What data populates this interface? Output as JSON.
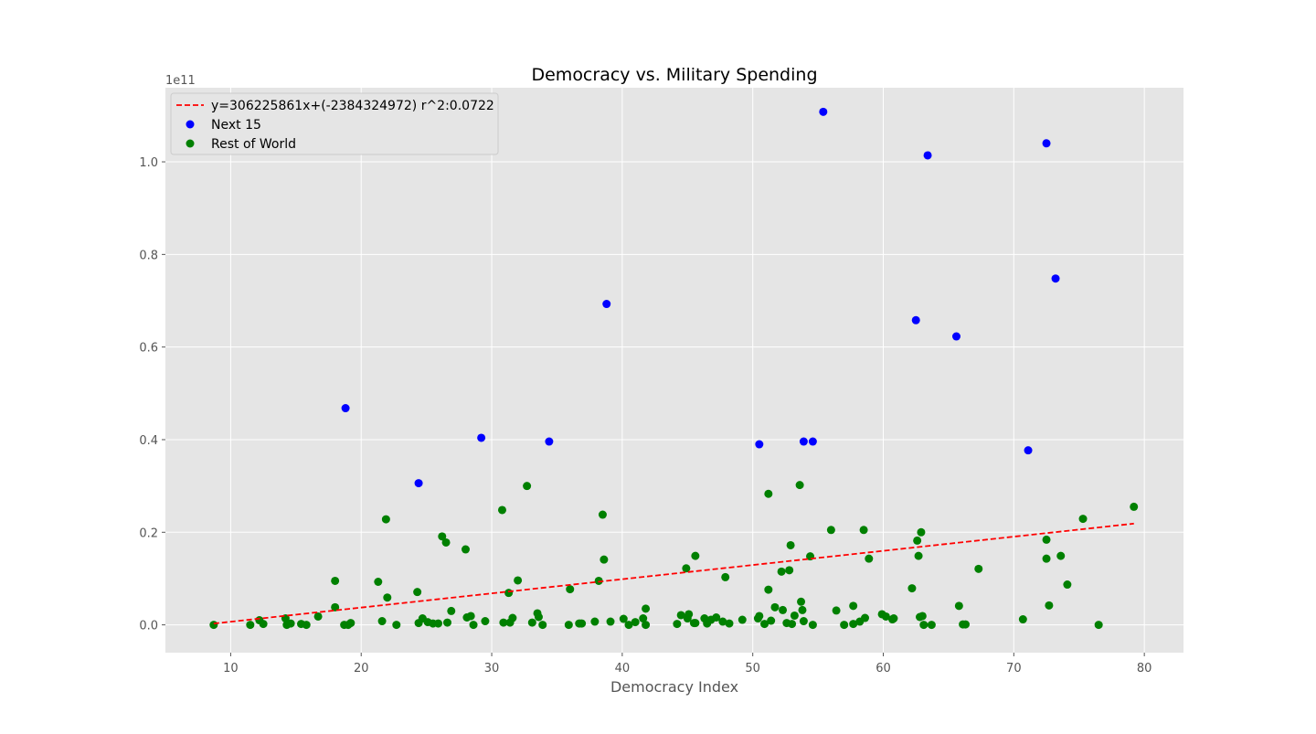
{
  "chart_data": {
    "type": "scatter",
    "title": "Democracy vs. Military Spending",
    "xlabel": "Democracy Index",
    "ylabel": "",
    "y_offset_label": "1e11",
    "xlim": [
      5,
      83
    ],
    "ylim": [
      -0.06,
      1.16
    ],
    "x_ticks": [
      10,
      20,
      30,
      40,
      50,
      60,
      70,
      80
    ],
    "y_ticks": [
      0.0,
      0.2,
      0.4,
      0.6,
      0.8,
      1.0
    ],
    "grid": true,
    "legend_position": "top-left",
    "trendline": {
      "name": "y=306225861x+(-2384324972) r^2:0.0722",
      "slope": 0.00306225861,
      "intercept": -0.02384324972,
      "x_range": [
        8.7,
        79.2
      ],
      "color": "#ff0000",
      "style": "dashed"
    },
    "series": [
      {
        "name": "Next 15",
        "color": "#0000ff",
        "points": [
          [
            55.4,
            1.108
          ],
          [
            72.5,
            1.04
          ],
          [
            63.4,
            1.014
          ],
          [
            38.8,
            0.693
          ],
          [
            73.2,
            0.748
          ],
          [
            62.5,
            0.658
          ],
          [
            65.6,
            0.623
          ],
          [
            18.8,
            0.468
          ],
          [
            29.2,
            0.404
          ],
          [
            34.4,
            0.396
          ],
          [
            53.9,
            0.396
          ],
          [
            54.6,
            0.396
          ],
          [
            50.5,
            0.39
          ],
          [
            71.1,
            0.377
          ],
          [
            24.4,
            0.306
          ]
        ]
      },
      {
        "name": "Rest of World",
        "color": "#008000",
        "points": [
          [
            8.7,
            0.0
          ],
          [
            11.5,
            0.0
          ],
          [
            12.2,
            0.01
          ],
          [
            12.5,
            0.002
          ],
          [
            14.2,
            0.014
          ],
          [
            14.3,
            0.0
          ],
          [
            14.6,
            0.003
          ],
          [
            15.4,
            0.002
          ],
          [
            15.8,
            0.0
          ],
          [
            16.7,
            0.018
          ],
          [
            18.0,
            0.095
          ],
          [
            18.0,
            0.038
          ],
          [
            18.7,
            0.0
          ],
          [
            19.0,
            0.0
          ],
          [
            19.2,
            0.004
          ],
          [
            21.3,
            0.093
          ],
          [
            21.6,
            0.008
          ],
          [
            21.9,
            0.228
          ],
          [
            22.0,
            0.059
          ],
          [
            22.7,
            0.0
          ],
          [
            24.3,
            0.071
          ],
          [
            24.4,
            0.004
          ],
          [
            24.7,
            0.014
          ],
          [
            25.1,
            0.006
          ],
          [
            25.5,
            0.003
          ],
          [
            25.9,
            0.003
          ],
          [
            26.2,
            0.191
          ],
          [
            26.5,
            0.178
          ],
          [
            26.6,
            0.005
          ],
          [
            26.9,
            0.03
          ],
          [
            28.0,
            0.163
          ],
          [
            28.1,
            0.016
          ],
          [
            28.4,
            0.019
          ],
          [
            28.6,
            0.0
          ],
          [
            29.5,
            0.008
          ],
          [
            30.8,
            0.248
          ],
          [
            30.9,
            0.005
          ],
          [
            31.3,
            0.069
          ],
          [
            31.4,
            0.005
          ],
          [
            31.6,
            0.015
          ],
          [
            32.0,
            0.096
          ],
          [
            32.7,
            0.3
          ],
          [
            33.1,
            0.005
          ],
          [
            33.5,
            0.025
          ],
          [
            33.6,
            0.017
          ],
          [
            33.9,
            0.0
          ],
          [
            35.9,
            0.0
          ],
          [
            36.0,
            0.077
          ],
          [
            36.7,
            0.003
          ],
          [
            36.9,
            0.003
          ],
          [
            37.9,
            0.007
          ],
          [
            38.2,
            0.095
          ],
          [
            38.5,
            0.238
          ],
          [
            38.6,
            0.141
          ],
          [
            39.1,
            0.007
          ],
          [
            40.1,
            0.013
          ],
          [
            40.5,
            0.0
          ],
          [
            41.0,
            0.006
          ],
          [
            41.6,
            0.014
          ],
          [
            41.8,
            0.035
          ],
          [
            41.8,
            0.0
          ],
          [
            44.2,
            0.002
          ],
          [
            44.5,
            0.021
          ],
          [
            44.9,
            0.122
          ],
          [
            45.0,
            0.014
          ],
          [
            45.1,
            0.023
          ],
          [
            45.5,
            0.004
          ],
          [
            45.6,
            0.149
          ],
          [
            45.6,
            0.004
          ],
          [
            46.3,
            0.014
          ],
          [
            46.5,
            0.003
          ],
          [
            46.8,
            0.011
          ],
          [
            47.2,
            0.016
          ],
          [
            47.7,
            0.007
          ],
          [
            47.9,
            0.103
          ],
          [
            48.2,
            0.003
          ],
          [
            49.2,
            0.011
          ],
          [
            50.4,
            0.014
          ],
          [
            50.5,
            0.019
          ],
          [
            50.9,
            0.002
          ],
          [
            51.2,
            0.283
          ],
          [
            51.2,
            0.076
          ],
          [
            51.4,
            0.009
          ],
          [
            51.7,
            0.038
          ],
          [
            52.2,
            0.115
          ],
          [
            52.3,
            0.032
          ],
          [
            52.6,
            0.004
          ],
          [
            52.8,
            0.118
          ],
          [
            52.9,
            0.172
          ],
          [
            53.0,
            0.002
          ],
          [
            53.2,
            0.02
          ],
          [
            53.6,
            0.302
          ],
          [
            53.7,
            0.05
          ],
          [
            53.8,
            0.032
          ],
          [
            53.9,
            0.008
          ],
          [
            54.4,
            0.148
          ],
          [
            54.6,
            0.0
          ],
          [
            56.0,
            0.205
          ],
          [
            56.4,
            0.031
          ],
          [
            57.0,
            0.0
          ],
          [
            57.7,
            0.041
          ],
          [
            57.7,
            0.002
          ],
          [
            58.2,
            0.007
          ],
          [
            58.5,
            0.205
          ],
          [
            58.6,
            0.015
          ],
          [
            58.9,
            0.143
          ],
          [
            59.9,
            0.023
          ],
          [
            60.2,
            0.018
          ],
          [
            60.7,
            0.012
          ],
          [
            60.8,
            0.014
          ],
          [
            62.2,
            0.079
          ],
          [
            62.6,
            0.182
          ],
          [
            62.7,
            0.149
          ],
          [
            62.8,
            0.017
          ],
          [
            62.9,
            0.2
          ],
          [
            63.0,
            0.019
          ],
          [
            63.1,
            0.0
          ],
          [
            63.7,
            0.0
          ],
          [
            65.8,
            0.041
          ],
          [
            66.1,
            0.001
          ],
          [
            66.3,
            0.001
          ],
          [
            67.3,
            0.121
          ],
          [
            70.7,
            0.012
          ],
          [
            72.5,
            0.184
          ],
          [
            72.5,
            0.143
          ],
          [
            72.7,
            0.042
          ],
          [
            73.6,
            0.149
          ],
          [
            74.1,
            0.087
          ],
          [
            75.3,
            0.229
          ],
          [
            76.5,
            0.0
          ],
          [
            79.2,
            0.255
          ]
        ]
      }
    ]
  }
}
